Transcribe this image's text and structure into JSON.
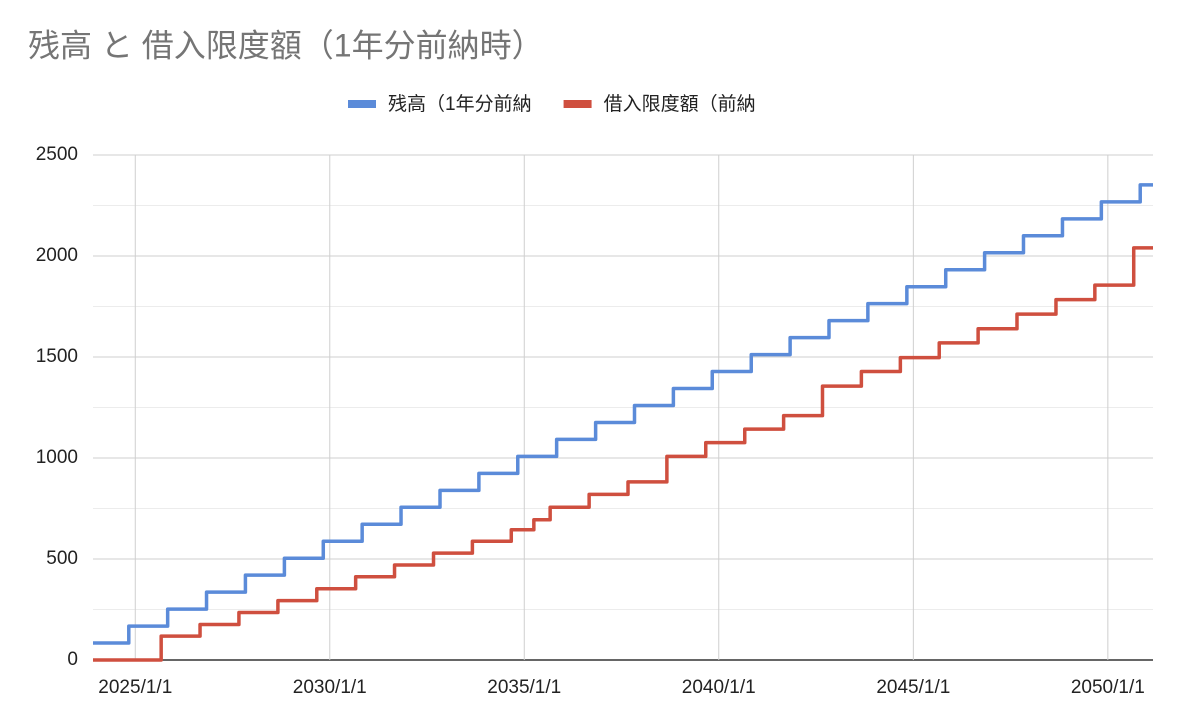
{
  "chart_data": {
    "type": "line",
    "step": true,
    "title": "残高 と 借入限度額（1年分前納時）",
    "xlim": [
      "2023/12/1",
      "2051/3/1"
    ],
    "xticks": [
      "2025/1/1",
      "2030/1/1",
      "2035/1/1",
      "2040/1/1",
      "2045/1/1",
      "2050/1/1"
    ],
    "ylim": [
      0,
      2500
    ],
    "yticks": [
      0,
      500,
      1000,
      1500,
      2000,
      2500
    ],
    "grid": true,
    "legend": "top",
    "series": [
      {
        "name": "残高（1年分前納",
        "color": "#5b8bd9",
        "x": [
          "2023/12/1",
          "2024/11/1",
          "2025/11/1",
          "2026/11/1",
          "2027/11/1",
          "2028/11/1",
          "2029/11/1",
          "2030/11/1",
          "2031/11/1",
          "2032/11/1",
          "2033/11/1",
          "2034/11/1",
          "2035/11/1",
          "2036/11/1",
          "2037/11/1",
          "2038/11/1",
          "2039/11/1",
          "2040/11/1",
          "2041/11/1",
          "2042/11/1",
          "2043/11/1",
          "2044/11/1",
          "2045/11/1",
          "2046/11/1",
          "2047/11/1",
          "2048/11/1",
          "2049/11/1",
          "2050/11/1"
        ],
        "values": [
          84,
          168,
          252,
          336,
          420,
          504,
          588,
          672,
          756,
          840,
          924,
          1008,
          1092,
          1176,
          1260,
          1344,
          1428,
          1512,
          1596,
          1680,
          1764,
          1848,
          1932,
          2016,
          2100,
          2184,
          2268,
          2352
        ]
      },
      {
        "name": "借入限度額（前納",
        "color": "#cf4f3f",
        "x": [
          "2023/12/1",
          "2025/9/1",
          "2026/9/1",
          "2027/9/1",
          "2028/9/1",
          "2029/9/1",
          "2030/9/1",
          "2031/9/1",
          "2032/9/1",
          "2033/9/1",
          "2034/9/1",
          "2035/4/1",
          "2035/9/1",
          "2036/9/1",
          "2037/9/1",
          "2038/9/1",
          "2039/9/1",
          "2040/9/1",
          "2041/9/1",
          "2042/9/1",
          "2043/9/1",
          "2044/9/1",
          "2045/9/1",
          "2046/9/1",
          "2047/9/1",
          "2048/9/1",
          "2049/9/1",
          "2050/9/1"
        ],
        "values": [
          0,
          118,
          176,
          235,
          294,
          353,
          412,
          470,
          529,
          588,
          645,
          694,
          756,
          820,
          882,
          1008,
          1076,
          1143,
          1210,
          1356,
          1428,
          1497,
          1570,
          1640,
          1712,
          1784,
          1856,
          2040
        ]
      }
    ]
  }
}
